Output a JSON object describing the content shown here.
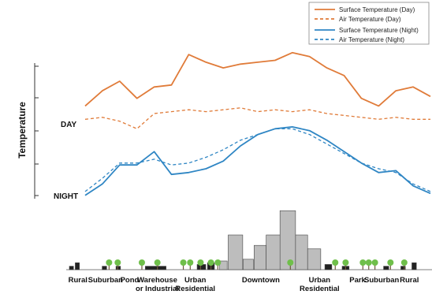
{
  "chart_data": {
    "type": "line",
    "title": "",
    "xlabel": "",
    "ylabel": "Temperature",
    "row_labels": {
      "day": "DAY",
      "night": "NIGHT"
    },
    "grid": false,
    "legend_placement": "top-right",
    "x": [
      0,
      5,
      10,
      15,
      20,
      25,
      30,
      35,
      40,
      45,
      50,
      55,
      60,
      65,
      70,
      75,
      80,
      85,
      90,
      95,
      100
    ],
    "series": [
      {
        "name": "Surface Temperature (Day)",
        "color": "#e07b39",
        "dash": false,
        "values": [
          5.0,
          5.8,
          6.3,
          5.4,
          6.0,
          6.1,
          7.7,
          7.3,
          7.0,
          7.2,
          7.3,
          7.4,
          7.8,
          7.6,
          7.0,
          6.6,
          5.4,
          5.0,
          5.8,
          6.0,
          5.5
        ]
      },
      {
        "name": "Air Temperature  (Day)",
        "color": "#e07b39",
        "dash": true,
        "values": [
          4.3,
          4.4,
          4.2,
          3.8,
          4.6,
          4.7,
          4.8,
          4.7,
          4.8,
          4.9,
          4.7,
          4.8,
          4.7,
          4.8,
          4.6,
          4.5,
          4.4,
          4.3,
          4.4,
          4.3,
          4.3
        ]
      },
      {
        "name": "Surface Temperature (Night)",
        "color": "#2f86c4",
        "dash": false,
        "values": [
          0.3,
          0.9,
          1.9,
          1.9,
          2.6,
          1.4,
          1.5,
          1.7,
          2.1,
          2.9,
          3.5,
          3.8,
          3.9,
          3.7,
          3.2,
          2.6,
          2.0,
          1.5,
          1.6,
          0.8,
          0.4
        ]
      },
      {
        "name": "Air Temperature (Night)",
        "color": "#2f86c4",
        "dash": true,
        "values": [
          0.5,
          1.2,
          2.0,
          2.0,
          2.2,
          1.9,
          2.0,
          2.3,
          2.7,
          3.2,
          3.5,
          3.8,
          3.8,
          3.5,
          3.0,
          2.5,
          2.0,
          1.7,
          1.5,
          0.9,
          0.5
        ]
      }
    ],
    "ylim": [
      0,
      8
    ],
    "regions": [
      {
        "label": "Rural",
        "x": 2
      },
      {
        "label": "Suburban",
        "x": 10
      },
      {
        "label": "Pond",
        "x": 17
      },
      {
        "label": "Warehouse\nor Industrial",
        "x": 25
      },
      {
        "label": "Urban\nResidential",
        "x": 36
      },
      {
        "label": "Downtown",
        "x": 55
      },
      {
        "label": "Urban\nResidential",
        "x": 72
      },
      {
        "label": "Park",
        "x": 83
      },
      {
        "label": "Suburban",
        "x": 90
      },
      {
        "label": "Rural",
        "x": 98
      }
    ],
    "buildings": [
      {
        "x": 0,
        "w": 1.2,
        "h": 1
      },
      {
        "x": 1.7,
        "w": 1.2,
        "h": 2
      },
      {
        "x": 9.5,
        "w": 1.3,
        "h": 1
      },
      {
        "x": 13.5,
        "w": 1.3,
        "h": 1
      },
      {
        "x": 22,
        "w": 6,
        "h": 1
      },
      {
        "x": 37,
        "w": 2.5,
        "h": 1.5
      },
      {
        "x": 40,
        "w": 2,
        "h": 2
      },
      {
        "x": 43.5,
        "w": 2.2,
        "h": 2.5
      },
      {
        "x": 46,
        "w": 4.2,
        "h": 10
      },
      {
        "x": 50.3,
        "w": 3,
        "h": 3
      },
      {
        "x": 53.5,
        "w": 3.5,
        "h": 7
      },
      {
        "x": 57,
        "w": 4.2,
        "h": 10
      },
      {
        "x": 61,
        "w": 4.5,
        "h": 17
      },
      {
        "x": 65.5,
        "w": 3.5,
        "h": 10
      },
      {
        "x": 69,
        "w": 3.8,
        "h": 6
      },
      {
        "x": 74,
        "w": 2,
        "h": 1.5
      },
      {
        "x": 79,
        "w": 2,
        "h": 1
      },
      {
        "x": 91,
        "w": 1.5,
        "h": 1
      },
      {
        "x": 96,
        "w": 1.3,
        "h": 1
      },
      {
        "x": 99.2,
        "w": 1.3,
        "h": 2
      }
    ],
    "trees": [
      11.5,
      14,
      21,
      25.5,
      33,
      35,
      38,
      41,
      43,
      64,
      77,
      80,
      85,
      86.7,
      88.5,
      93,
      97
    ]
  }
}
